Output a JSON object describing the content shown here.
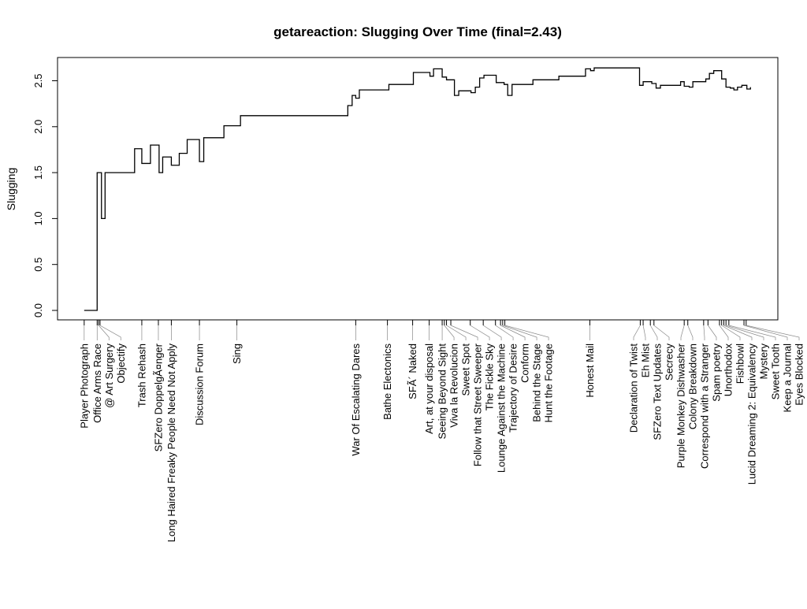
{
  "chart_data": {
    "type": "line",
    "style": "step",
    "title": "getareaction: Slugging Over Time (final=2.43)",
    "xlabel": "",
    "ylabel": "Slugging",
    "xlim": [
      0,
      100
    ],
    "ylim": [
      -0.1,
      2.75
    ],
    "yticks": [
      "0.0",
      "0.5",
      "1.0",
      "1.5",
      "2.0",
      "2.5"
    ],
    "ytick_values": [
      0,
      0.5,
      1.0,
      1.5,
      2.0,
      2.5
    ],
    "grid": false,
    "line_color": "#000000",
    "steps": [
      [
        3.7,
        0
      ],
      [
        5.5,
        1.5
      ],
      [
        6.1,
        1.0
      ],
      [
        6.6,
        1.5
      ],
      [
        10.7,
        1.76
      ],
      [
        11.7,
        1.6
      ],
      [
        12.9,
        1.8
      ],
      [
        14.1,
        1.5
      ],
      [
        14.6,
        1.67
      ],
      [
        15.8,
        1.58
      ],
      [
        16.9,
        1.71
      ],
      [
        18.0,
        1.86
      ],
      [
        19.7,
        1.62
      ],
      [
        20.3,
        1.88
      ],
      [
        23.1,
        2.01
      ],
      [
        25.4,
        2.12
      ],
      [
        40.3,
        2.23
      ],
      [
        40.9,
        2.34
      ],
      [
        41.4,
        2.31
      ],
      [
        41.9,
        2.4
      ],
      [
        46.0,
        2.46
      ],
      [
        49.4,
        2.59
      ],
      [
        51.7,
        2.55
      ],
      [
        52.2,
        2.63
      ],
      [
        53.4,
        2.54
      ],
      [
        54.0,
        2.51
      ],
      [
        55.1,
        2.34
      ],
      [
        55.7,
        2.39
      ],
      [
        57.4,
        2.37
      ],
      [
        58.0,
        2.43
      ],
      [
        58.6,
        2.53
      ],
      [
        59.2,
        2.56
      ],
      [
        60.9,
        2.48
      ],
      [
        62.0,
        2.46
      ],
      [
        62.5,
        2.34
      ],
      [
        63.1,
        2.46
      ],
      [
        66.0,
        2.51
      ],
      [
        69.6,
        2.55
      ],
      [
        73.3,
        2.63
      ],
      [
        74.0,
        2.61
      ],
      [
        74.5,
        2.64
      ],
      [
        80.8,
        2.45
      ],
      [
        81.3,
        2.49
      ],
      [
        82.5,
        2.47
      ],
      [
        83.1,
        2.42
      ],
      [
        83.7,
        2.45
      ],
      [
        86.5,
        2.49
      ],
      [
        87.0,
        2.44
      ],
      [
        87.7,
        2.43
      ],
      [
        88.2,
        2.49
      ],
      [
        90.0,
        2.52
      ],
      [
        90.5,
        2.58
      ],
      [
        91.1,
        2.61
      ],
      [
        92.2,
        2.52
      ],
      [
        92.8,
        2.43
      ],
      [
        93.4,
        2.42
      ],
      [
        93.9,
        2.4
      ],
      [
        94.4,
        2.43
      ],
      [
        95.0,
        2.45
      ],
      [
        95.7,
        2.41
      ],
      [
        96.2,
        2.43
      ]
    ],
    "xticks": [
      {
        "x": 3.7,
        "label": "Player Photograph"
      },
      {
        "x": 5.5,
        "label": "Office Arms Race"
      },
      {
        "x": 5.7,
        "label": "@ Art Surgery"
      },
      {
        "x": 5.9,
        "label": "Objectify"
      },
      {
        "x": 11.7,
        "label": "Trash Rehash"
      },
      {
        "x": 14.0,
        "label": "SFZero DoppelgÃ¤nger"
      },
      {
        "x": 15.8,
        "label": "Long Haired Freaky People Need Not Apply"
      },
      {
        "x": 19.7,
        "label": "Discussion Forum"
      },
      {
        "x": 24.9,
        "label": "Sing"
      },
      {
        "x": 41.4,
        "label": "War Of Escalating Dares"
      },
      {
        "x": 45.8,
        "label": "Bathe Electonics"
      },
      {
        "x": 49.3,
        "label": "SFÃ´ Naked"
      },
      {
        "x": 51.6,
        "label": "Art, at your disposal"
      },
      {
        "x": 53.4,
        "label": "Seeing Beyond Sight"
      },
      {
        "x": 53.7,
        "label": "Viva la Revolucion"
      },
      {
        "x": 54.0,
        "label": "Sweet Spot"
      },
      {
        "x": 54.6,
        "label": "Follow that Street Sweeper"
      },
      {
        "x": 57.3,
        "label": "The Fickle Sky"
      },
      {
        "x": 59.1,
        "label": "Lounge Against the Machine"
      },
      {
        "x": 60.8,
        "label": "Trajectory of Desire"
      },
      {
        "x": 61.5,
        "label": "Conform"
      },
      {
        "x": 61.8,
        "label": "Behind the Stage"
      },
      {
        "x": 62.1,
        "label": "Hunt the Footage"
      },
      {
        "x": 73.9,
        "label": "Honest Mail"
      },
      {
        "x": 80.9,
        "label": "Declaration of Twist"
      },
      {
        "x": 81.3,
        "label": "Eh Mist"
      },
      {
        "x": 82.3,
        "label": "SFZero Text Updates"
      },
      {
        "x": 82.8,
        "label": "Secrecy"
      },
      {
        "x": 87.0,
        "label": "Purple Monkey Dishwasher"
      },
      {
        "x": 87.5,
        "label": "Colony Breakdown"
      },
      {
        "x": 89.7,
        "label": "Correspond with a Stranger"
      },
      {
        "x": 90.3,
        "label": "Spam poetry"
      },
      {
        "x": 91.9,
        "label": "Unorthodox"
      },
      {
        "x": 92.2,
        "label": "Fishbowl"
      },
      {
        "x": 92.5,
        "label": "Lucid Dreaming 2: Equivalency"
      },
      {
        "x": 92.8,
        "label": "Mystery"
      },
      {
        "x": 93.2,
        "label": "Sweet Tooth"
      },
      {
        "x": 95.3,
        "label": "Keep a Journal"
      },
      {
        "x": 95.6,
        "label": "Eyes Blocked"
      }
    ]
  }
}
